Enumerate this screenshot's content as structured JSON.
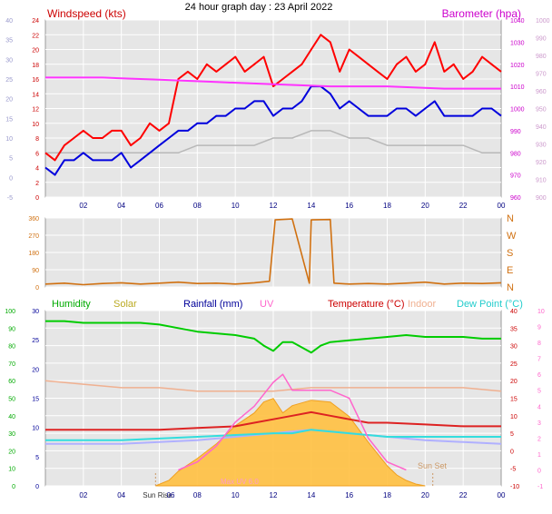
{
  "page_title": "24 hour graph day : 23 April 2022",
  "colors": {
    "wind_gust": "#ff0000",
    "wind_avg": "#0000dd",
    "wind_dir_grey": "#b8b8b8",
    "barometer": "#ff33ff",
    "wind_direction": "#d07010",
    "humidity": "#00cc00",
    "solar": "#ffc040",
    "rainfall": "#0000aa",
    "uv": "#ff66cc",
    "temperature": "#dd2222",
    "indoor": "#f0b090",
    "dew_point": "#33dddd",
    "apparent": "#b0b0ff",
    "plot_bg": "#e6e6e6",
    "grid": "#ffffff"
  },
  "chart_data": [
    {
      "type": "line",
      "title": "Windspeed (kts)",
      "right_title": "Barometer (hpa)",
      "x_ticks": [
        "02",
        "04",
        "06",
        "08",
        "10",
        "12",
        "14",
        "16",
        "18",
        "20",
        "22",
        "00"
      ],
      "x_range_hours": [
        0,
        24
      ],
      "y_left": {
        "label": "Windspeed (kts)",
        "range": [
          0,
          24
        ],
        "ticks": [
          "0",
          "2",
          "4",
          "6",
          "8",
          "10",
          "12",
          "14",
          "16",
          "18",
          "20",
          "22",
          "24"
        ]
      },
      "y_left_outer": {
        "range": [
          -5,
          40
        ],
        "ticks": [
          "-5",
          "0",
          "5",
          "10",
          "15",
          "20",
          "25",
          "30",
          "35",
          "40"
        ]
      },
      "y_right": {
        "label": "Barometer (hpa)",
        "range": [
          960,
          1040
        ],
        "ticks": [
          "960",
          "970",
          "980",
          "990",
          "1000",
          "1010",
          "1020",
          "1030",
          "1040"
        ]
      },
      "y_right_outer": {
        "ticks": [
          "1000",
          "990",
          "980",
          "970",
          "960",
          "950",
          "940",
          "930",
          "920",
          "910",
          "900"
        ]
      },
      "series": [
        {
          "name": "Gust",
          "hours": [
            0,
            0.5,
            1,
            1.5,
            2,
            2.5,
            3,
            3.5,
            4,
            4.5,
            5,
            5.5,
            6,
            6.5,
            7,
            7.5,
            8,
            8.5,
            9,
            9.5,
            10,
            10.5,
            11,
            11.5,
            12,
            12.5,
            13,
            13.5,
            14,
            14.5,
            15,
            15.5,
            16,
            16.5,
            17,
            17.5,
            18,
            18.5,
            19,
            19.5,
            20,
            20.5,
            21,
            21.5,
            22,
            22.5,
            23,
            23.5,
            24
          ],
          "values": [
            6,
            5,
            7,
            8,
            9,
            8,
            8,
            9,
            9,
            7,
            8,
            10,
            9,
            10,
            16,
            17,
            16,
            18,
            17,
            18,
            19,
            17,
            18,
            19,
            15,
            16,
            17,
            18,
            20,
            22,
            21,
            17,
            20,
            19,
            18,
            17,
            16,
            18,
            19,
            17,
            18,
            21,
            17,
            18,
            16,
            17,
            19,
            18,
            17
          ]
        },
        {
          "name": "Average",
          "hours": [
            0,
            0.5,
            1,
            1.5,
            2,
            2.5,
            3,
            3.5,
            4,
            4.5,
            5,
            5.5,
            6,
            6.5,
            7,
            7.5,
            8,
            8.5,
            9,
            9.5,
            10,
            10.5,
            11,
            11.5,
            12,
            12.5,
            13,
            13.5,
            14,
            14.5,
            15,
            15.5,
            16,
            16.5,
            17,
            17.5,
            18,
            18.5,
            19,
            19.5,
            20,
            20.5,
            21,
            21.5,
            22,
            22.5,
            23,
            23.5,
            24
          ],
          "values": [
            4,
            3,
            5,
            5,
            6,
            5,
            5,
            5,
            6,
            4,
            5,
            6,
            7,
            8,
            9,
            9,
            10,
            10,
            11,
            11,
            12,
            12,
            13,
            13,
            11,
            12,
            12,
            13,
            15,
            15,
            14,
            12,
            13,
            12,
            11,
            11,
            11,
            12,
            12,
            11,
            12,
            13,
            11,
            11,
            11,
            11,
            12,
            12,
            11
          ]
        },
        {
          "name": "Direction scale",
          "hours": [
            0,
            1,
            2,
            3,
            4,
            5,
            6,
            7,
            8,
            9,
            10,
            11,
            12,
            13,
            14,
            15,
            16,
            17,
            18,
            19,
            20,
            21,
            22,
            23,
            24
          ],
          "values": [
            6,
            6,
            6,
            6,
            6,
            6,
            6,
            6,
            7,
            7,
            7,
            7,
            8,
            8,
            9,
            9,
            8,
            8,
            7,
            7,
            7,
            7,
            7,
            6,
            6
          ]
        }
      ],
      "barometer": {
        "name": "Barometer",
        "hours": [
          0,
          3,
          6,
          9,
          12,
          15,
          18,
          21,
          24
        ],
        "values": [
          1014,
          1014,
          1013,
          1012,
          1011,
          1010,
          1010,
          1009,
          1009
        ]
      }
    },
    {
      "type": "scatter",
      "title": "Wind direction",
      "y_left": {
        "range": [
          0,
          360
        ],
        "ticks": [
          "0",
          "90",
          "180",
          "270",
          "360"
        ]
      },
      "y_right_labels": [
        "N",
        "E",
        "S",
        "W",
        "N"
      ],
      "x_ticks": [],
      "series": [
        {
          "name": "Direction",
          "hours": [
            0,
            1,
            2,
            3,
            4,
            5,
            6,
            7,
            8,
            9,
            10,
            11,
            11.8,
            12.1,
            13,
            13.9,
            14,
            15,
            15.2,
            16,
            17,
            18,
            19,
            20,
            21,
            22,
            23,
            24
          ],
          "values": [
            15,
            20,
            12,
            18,
            22,
            15,
            20,
            25,
            18,
            20,
            15,
            22,
            30,
            350,
            355,
            20,
            350,
            352,
            20,
            15,
            18,
            15,
            20,
            25,
            15,
            20,
            18,
            22
          ]
        }
      ]
    },
    {
      "type": "line",
      "legend": [
        "Humidity",
        "Solar",
        "Rainfall (mm)",
        "UV",
        "Temperature (°C)",
        "Indoor",
        "Dew Point (°C)"
      ],
      "x_ticks": [
        "02",
        "04",
        "Sun Rise",
        "06",
        "08",
        "10",
        "12",
        "14",
        "16",
        "18",
        "20",
        "22",
        "00"
      ],
      "annotations": [
        "Max UV 6.0"
      ],
      "sun_set": "Sun Set",
      "y_outer_left": {
        "label": "Humidity",
        "ticks": [
          "0",
          "10",
          "20",
          "30",
          "40",
          "50",
          "60",
          "70",
          "80",
          "90",
          "100"
        ]
      },
      "y_left": {
        "label": "Rainfall (mm)",
        "ticks": [
          "0",
          "5",
          "10",
          "15",
          "20",
          "25",
          "30"
        ]
      },
      "y_right": {
        "label": "Temperature (°C)",
        "ticks": [
          "-10",
          "-5",
          "0",
          "5",
          "10",
          "15",
          "20",
          "25",
          "30",
          "35",
          "40"
        ]
      },
      "y_outer_right": {
        "label": "UV",
        "ticks": [
          "-1",
          "0",
          "1",
          "2",
          "3",
          "4",
          "5",
          "6",
          "7",
          "8",
          "9",
          "10"
        ]
      },
      "series": [
        {
          "name": "Humidity",
          "hours": [
            0,
            1,
            2,
            3,
            4,
            5,
            6,
            7,
            8,
            9,
            10,
            11,
            11.5,
            12,
            12.5,
            13,
            13.5,
            14,
            14.5,
            15,
            16,
            17,
            18,
            19,
            20,
            21,
            22,
            23,
            24
          ],
          "values": [
            94,
            94,
            93,
            93,
            93,
            93,
            92,
            90,
            88,
            87,
            86,
            84,
            80,
            77,
            82,
            82,
            79,
            76,
            80,
            82,
            83,
            84,
            85,
            86,
            85,
            85,
            85,
            84,
            84
          ]
        },
        {
          "name": "Solar",
          "hours": [
            5.8,
            6.5,
            7,
            8,
            9,
            10,
            11,
            11.5,
            12,
            12.5,
            13,
            14,
            15,
            16,
            17,
            18,
            18.5,
            19,
            19.5,
            20
          ],
          "values": [
            0,
            30,
            80,
            150,
            230,
            330,
            400,
            460,
            480,
            400,
            440,
            470,
            460,
            380,
            240,
            110,
            60,
            30,
            10,
            0
          ]
        },
        {
          "name": "Temperature",
          "hours": [
            0,
            2,
            4,
            6,
            8,
            10,
            11,
            12,
            13,
            14,
            15,
            16,
            17,
            18,
            20,
            22,
            24
          ],
          "values": [
            6,
            6,
            6,
            6,
            6.5,
            7,
            8,
            9,
            10,
            11,
            10,
            9,
            8,
            8,
            7.5,
            7,
            7
          ]
        },
        {
          "name": "Indoor",
          "hours": [
            0,
            2,
            4,
            6,
            8,
            10,
            12,
            14,
            16,
            18,
            20,
            22,
            24
          ],
          "values": [
            20,
            19,
            18,
            18,
            17,
            17,
            17,
            18,
            18,
            18,
            18,
            18,
            17
          ]
        },
        {
          "name": "Dew Point",
          "hours": [
            0,
            4,
            8,
            12,
            13,
            14,
            16,
            18,
            20,
            24
          ],
          "values": [
            3,
            3,
            4,
            5,
            5,
            6,
            5,
            4,
            4,
            4
          ]
        },
        {
          "name": "Apparent",
          "hours": [
            0,
            4,
            8,
            12,
            14,
            16,
            20,
            24
          ],
          "values": [
            2,
            2,
            3,
            5,
            6,
            5,
            3,
            2
          ]
        },
        {
          "name": "UV",
          "hours": [
            7,
            8,
            9,
            10,
            11,
            12,
            12.5,
            13,
            14,
            15,
            16,
            17,
            18,
            19
          ],
          "values": [
            0,
            0.5,
            1.5,
            3,
            4,
            5.5,
            6,
            5,
            5,
            5,
            4.5,
            2,
            0.5,
            0
          ]
        }
      ]
    }
  ]
}
